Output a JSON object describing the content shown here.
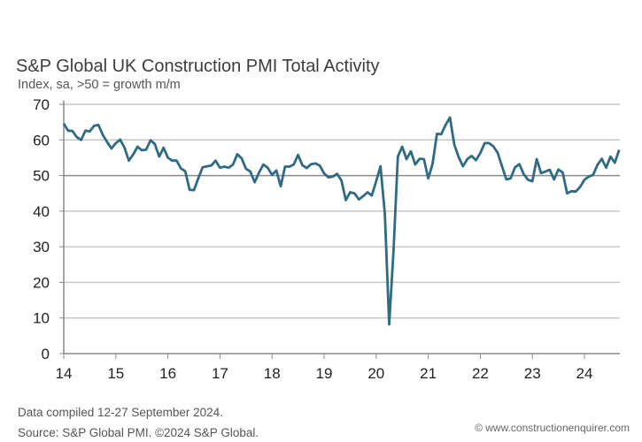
{
  "chart_data": {
    "type": "line",
    "title": "S&P Global UK Construction PMI Total Activity",
    "subtitle": "Index, sa, >50 = growth m/m",
    "xlabel": "",
    "ylabel": "",
    "ylim": [
      0,
      70
    ],
    "yticks": [
      "0",
      "10",
      "20",
      "30",
      "40",
      "50",
      "60",
      "70"
    ],
    "xticks": [
      "14",
      "15",
      "16",
      "17",
      "18",
      "19",
      "20",
      "21",
      "22",
      "23",
      "24"
    ],
    "grid": true,
    "x_start": "2014-01",
    "x_end": "2024-09",
    "frequency": "monthly",
    "line_color": "#2e6b85",
    "series": [
      {
        "values": [
          64.6,
          62.6,
          62.5,
          60.8,
          60.0,
          62.6,
          62.4,
          64.0,
          64.2,
          61.4,
          59.4,
          57.6,
          59.1,
          60.1,
          57.8,
          54.2,
          55.9,
          58.1,
          57.1,
          57.3,
          59.9,
          58.8,
          55.3,
          57.8,
          55.0,
          54.2,
          54.2,
          52.0,
          51.2,
          46.0,
          45.9,
          49.2,
          52.3,
          52.6,
          52.8,
          54.2,
          52.2,
          52.5,
          52.2,
          53.1,
          56.0,
          54.8,
          51.9,
          51.1,
          48.1,
          50.8,
          53.1,
          52.2,
          50.2,
          51.4,
          47.0,
          52.5,
          52.5,
          53.1,
          55.8,
          52.9,
          52.1,
          53.2,
          53.4,
          52.8,
          50.6,
          49.5,
          49.7,
          50.5,
          48.6,
          43.1,
          45.3,
          45.0,
          43.3,
          44.2,
          45.3,
          44.4,
          48.4,
          52.6,
          39.3,
          8.2,
          28.9,
          55.3,
          58.1,
          54.6,
          56.8,
          53.1,
          54.7,
          54.6,
          49.2,
          53.3,
          61.7,
          61.6,
          64.2,
          66.3,
          58.7,
          55.2,
          52.6,
          54.6,
          55.5,
          54.3,
          56.3,
          59.1,
          59.1,
          58.2,
          56.4,
          52.6,
          48.9,
          49.2,
          52.3,
          53.2,
          50.4,
          48.8,
          48.4,
          54.6,
          50.7,
          51.1,
          51.6,
          48.9,
          51.7,
          50.8,
          45.0,
          45.6,
          45.5,
          46.8,
          48.8,
          49.7,
          50.2,
          53.0,
          54.7,
          52.2,
          55.3,
          53.6,
          57.2
        ]
      }
    ]
  },
  "footer": {
    "line1": "Data compiled 12-27 September 2024.",
    "line2": "Source: S&P Global PMI. ©2024 S&P Global."
  },
  "watermark": "© www.constructionenquirer.com"
}
